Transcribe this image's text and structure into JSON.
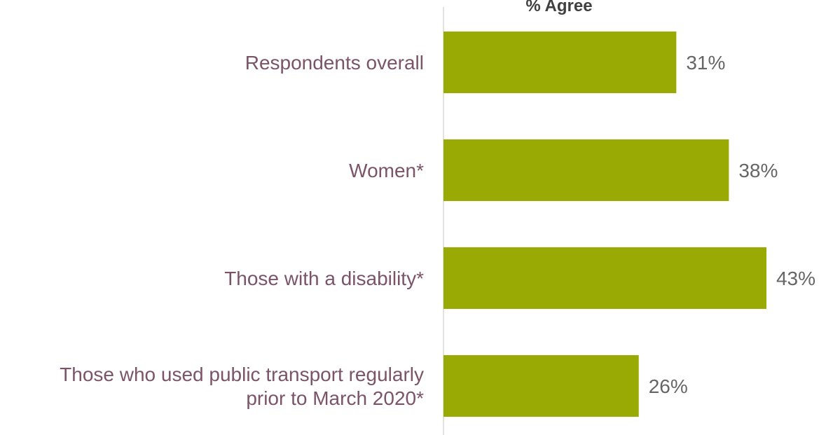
{
  "chart_data": {
    "type": "bar",
    "orientation": "horizontal",
    "title": "% Agree",
    "categories": [
      [
        "Respondents overall"
      ],
      [
        "Women*"
      ],
      [
        "Those with a disability*"
      ],
      [
        "Those who used public transport regularly",
        "prior to March 2020*"
      ]
    ],
    "values": [
      31,
      38,
      43,
      26
    ],
    "value_labels": [
      "31%",
      "38%",
      "43%",
      "26%"
    ],
    "xlim": [
      0,
      50
    ],
    "grid": false,
    "legend": "none",
    "colors": {
      "bar": "#9aaa05",
      "category_text": "#7b5468",
      "value_text": "#666666",
      "title_text": "#404040",
      "axis": "#d9d9d9"
    }
  }
}
